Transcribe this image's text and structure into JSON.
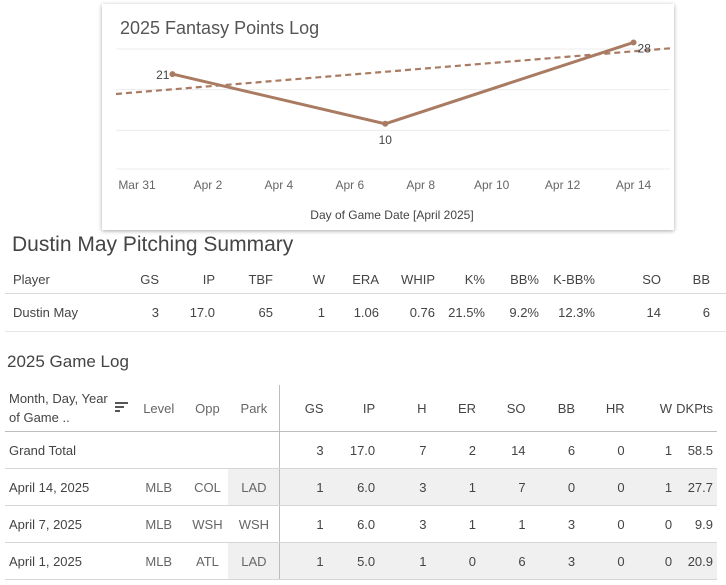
{
  "chart": {
    "title": "2025 Fantasy Points Log",
    "x_axis_label": "Day of Game Date [April 2025]",
    "x_ticks": [
      "Mar 31",
      "Apr 2",
      "Apr 4",
      "Apr 6",
      "Apr 8",
      "Apr 10",
      "Apr 12",
      "Apr 14"
    ],
    "line_color": "#a97b62"
  },
  "chart_data": {
    "type": "line",
    "title": "2025 Fantasy Points Log",
    "xlabel": "Day of Game Date [April 2025]",
    "ylabel": "",
    "x": [
      "2025-04-01",
      "2025-04-07",
      "2025-04-14"
    ],
    "series": [
      {
        "values": [
          21,
          10,
          28
        ]
      }
    ],
    "data_labels": [
      "21",
      "10",
      "28"
    ],
    "trend_line": {
      "style": "dashed",
      "start": 16.6,
      "end": 26.7
    },
    "x_range": [
      "2025-03-31",
      "2025-04-15"
    ],
    "grid": true
  },
  "summary": {
    "title": "Dustin May Pitching Summary",
    "columns": [
      "Player",
      "GS",
      "IP",
      "TBF",
      "W",
      "ERA",
      "WHIP",
      "K%",
      "BB%",
      "K-BB%",
      "SO",
      "BB"
    ],
    "row": [
      "Dustin May",
      "3",
      "17.0",
      "65",
      "1",
      "1.06",
      "0.76",
      "21.5%",
      "9.2%",
      "12.3%",
      "14",
      "6"
    ]
  },
  "game_log": {
    "title": "2025 Game Log",
    "date_header": "Month, Day, Year of Game ..",
    "dim_headers": [
      "Level",
      "Opp",
      "Park"
    ],
    "stat_headers": [
      "GS",
      "IP",
      "H",
      "ER",
      "SO",
      "BB",
      "HR",
      "W",
      "DKPts"
    ],
    "grand_total": {
      "label": "Grand Total",
      "stats": [
        "3",
        "17.0",
        "7",
        "2",
        "14",
        "6",
        "0",
        "1",
        "58.5"
      ]
    },
    "rows": [
      {
        "date": "April 14, 2025",
        "level": "MLB",
        "opp": "COL",
        "park": "LAD",
        "stats": [
          "1",
          "6.0",
          "3",
          "1",
          "7",
          "0",
          "0",
          "1",
          "27.7"
        ]
      },
      {
        "date": "April 7, 2025",
        "level": "MLB",
        "opp": "WSH",
        "park": "WSH",
        "stats": [
          "1",
          "6.0",
          "3",
          "1",
          "1",
          "3",
          "0",
          "0",
          "9.9"
        ]
      },
      {
        "date": "April 1, 2025",
        "level": "MLB",
        "opp": "ATL",
        "park": "LAD",
        "stats": [
          "1",
          "5.0",
          "1",
          "0",
          "6",
          "3",
          "0",
          "0",
          "20.9"
        ]
      }
    ]
  }
}
